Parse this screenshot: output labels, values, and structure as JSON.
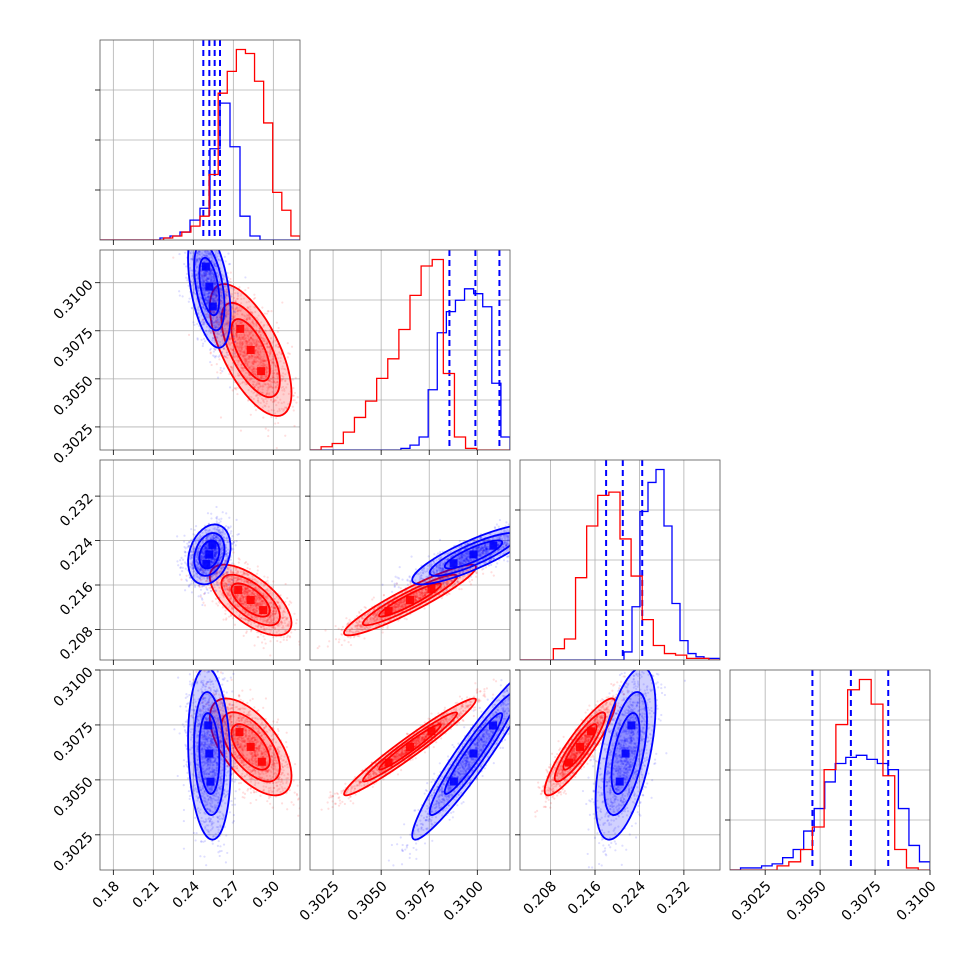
{
  "colors": {
    "blue": "#0000ff",
    "red": "#ff0000",
    "grid": "#b0b0b0",
    "frame": "#555555"
  },
  "chart_data": {
    "type": "corner",
    "grid": true,
    "params": [
      {
        "range": [
          0.17,
          0.32
        ],
        "ticks": [
          0.18,
          0.21,
          0.24,
          0.27,
          0.3
        ],
        "tick_labels": [
          "0.18",
          "0.21",
          "0.24",
          "0.27",
          "0.30"
        ]
      },
      {
        "range": [
          0.3013,
          0.3117
        ],
        "ticks": [
          0.3025,
          0.305,
          0.3075,
          0.31
        ],
        "tick_labels": [
          "0.3025",
          "0.3050",
          "0.3075",
          "0.3100"
        ]
      },
      {
        "range": [
          0.2025,
          0.2385
        ],
        "ticks": [
          0.208,
          0.216,
          0.224,
          0.232
        ],
        "tick_labels": [
          "0.208",
          "0.216",
          "0.224",
          "0.232"
        ]
      },
      {
        "range": [
          0.3009,
          0.31
        ],
        "ticks": [
          0.3025,
          0.305,
          0.3075,
          0.31
        ],
        "tick_labels": [
          "0.3025",
          "0.3050",
          "0.3075",
          "0.3100"
        ]
      }
    ],
    "series": [
      {
        "color": "blue",
        "histograms": [
          [
            0,
            0,
            0,
            0,
            0,
            0,
            1,
            2,
            4,
            10,
            16,
            46,
            69,
            47,
            12,
            2,
            0,
            0,
            0,
            0
          ],
          [
            0,
            0,
            0,
            0,
            0,
            0,
            0,
            0,
            0,
            0,
            1,
            3,
            8,
            37,
            72,
            85,
            92,
            99,
            96,
            88,
            41,
            8
          ],
          [
            0,
            0,
            0,
            0,
            0,
            0,
            0,
            0,
            0,
            0,
            0,
            0,
            0,
            5,
            33,
            92,
            110,
            118,
            83,
            35,
            12,
            4,
            2,
            1,
            1
          ],
          [
            0,
            1,
            1,
            2,
            3,
            6,
            10,
            19,
            30,
            43,
            52,
            55,
            56,
            54,
            52,
            49,
            30,
            12,
            4
          ]
        ],
        "quantiles": [
          [
            0.2475,
            0.252,
            0.256,
            0.26
          ],
          [
            0.30855,
            0.3099,
            0.31115
          ],
          [
            0.218,
            0.221,
            0.2245
          ],
          [
            0.30465,
            0.3064,
            0.3081
          ]
        ],
        "means": [
          0.252,
          0.3098,
          0.2215,
          0.3062
        ],
        "sds": [
          0.0065,
          0.0013,
          0.0022,
          0.0016
        ],
        "correlations": [
          [
            1,
            -0.45,
            0.25,
            -0.15
          ],
          [
            -0.45,
            1,
            0.85,
            0.95
          ],
          [
            0.25,
            0.85,
            1,
            0.55
          ],
          [
            -0.15,
            0.95,
            0.55,
            1
          ]
        ]
      },
      {
        "color": "red",
        "histograms": [
          [
            0,
            0,
            0,
            0,
            0,
            0,
            0,
            1,
            2,
            4,
            7,
            12,
            33,
            74,
            85,
            96,
            94,
            80,
            59,
            24,
            15,
            2
          ],
          [
            0,
            2,
            4,
            11,
            20,
            30,
            44,
            56,
            74,
            95,
            113,
            117,
            47,
            8,
            1,
            0,
            0,
            0
          ],
          [
            0,
            0,
            0,
            7,
            13,
            51,
            83,
            102,
            104,
            75,
            52,
            25,
            9,
            4,
            3,
            1,
            1,
            0
          ],
          [
            0,
            0,
            0,
            0,
            2,
            4,
            10,
            21,
            49,
            71,
            88,
            93,
            81,
            46,
            10,
            1,
            0
          ]
        ],
        "quantiles": [],
        "means": [
          0.283,
          0.3065,
          0.2133,
          0.3065
        ],
        "sds": [
          0.0125,
          0.0014,
          0.0026,
          0.0009
        ],
        "correlations": [
          [
            1,
            -0.65,
            -0.65,
            -0.6
          ],
          [
            -0.65,
            1,
            0.93,
            0.97
          ],
          [
            -0.65,
            0.93,
            1,
            0.9
          ],
          [
            -0.6,
            0.97,
            0.9,
            1
          ]
        ]
      }
    ]
  }
}
